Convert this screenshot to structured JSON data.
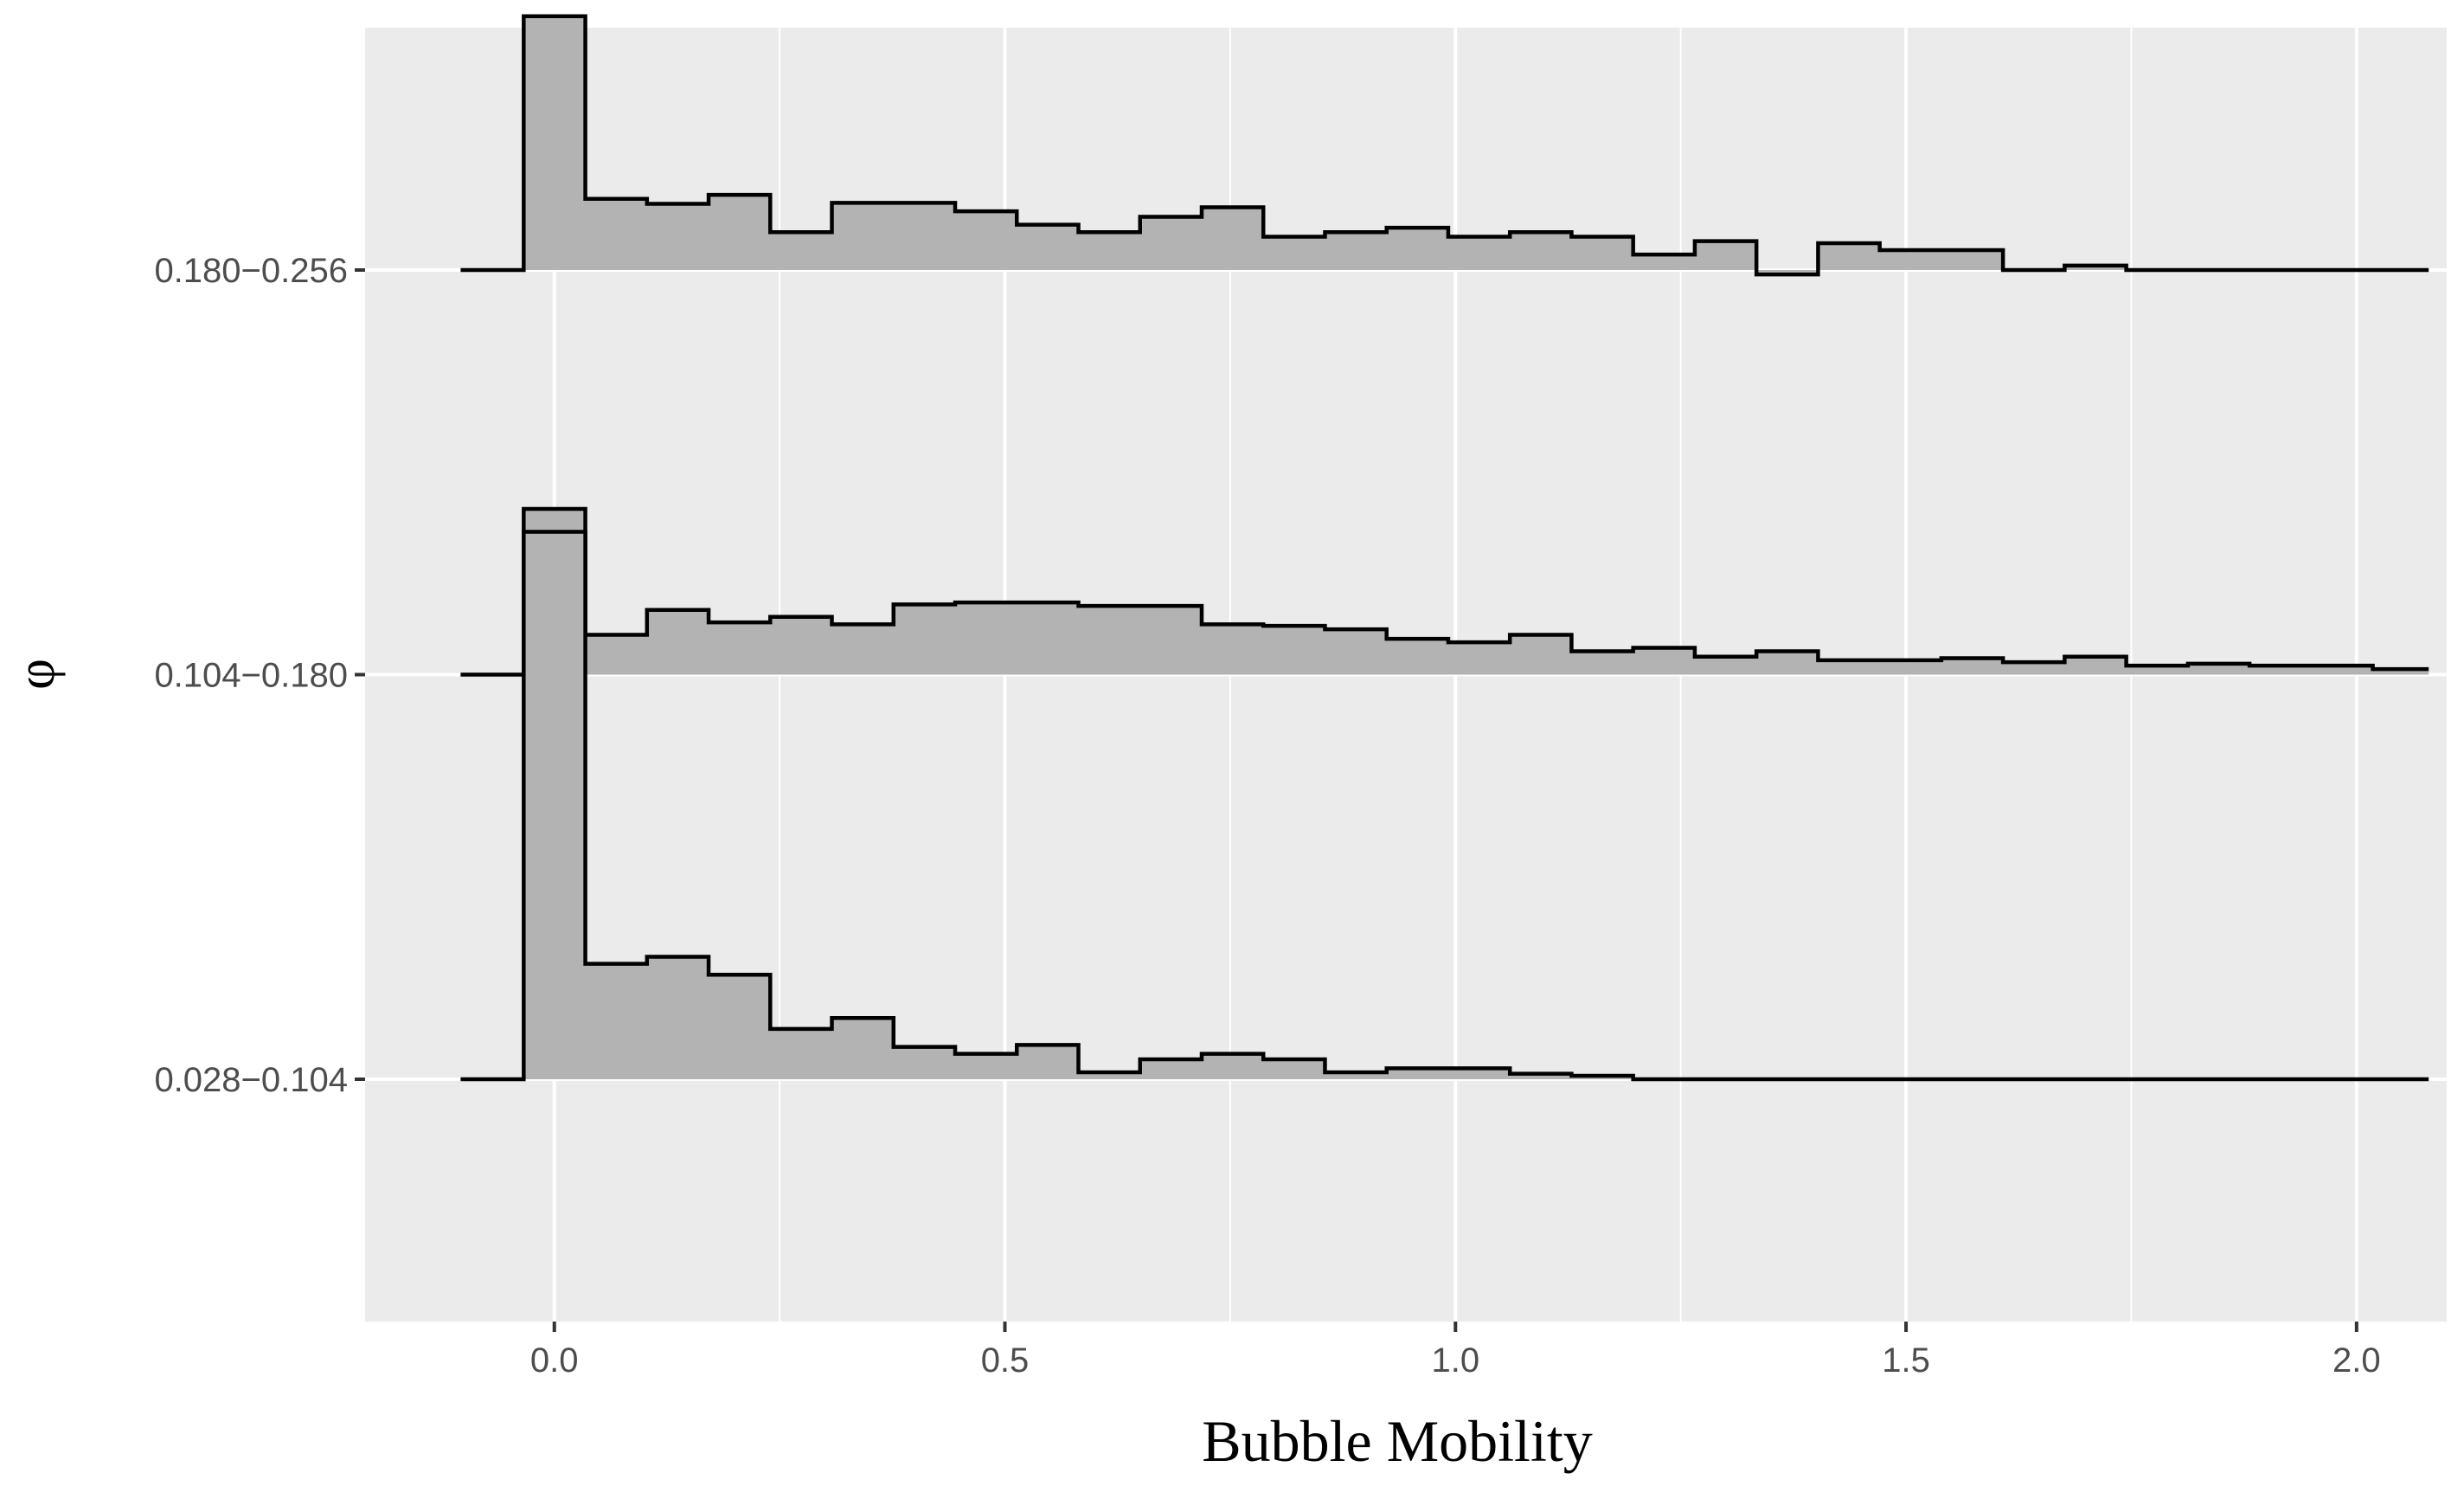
{
  "chart_data": {
    "type": "ridgeline-histogram",
    "title": "",
    "xlabel": "Bubble Mobility",
    "ylabel": "φ",
    "xlim": [
      -0.21,
      2.1
    ],
    "x_ticks": [
      {
        "value": 0.0,
        "label": "0.0"
      },
      {
        "value": 0.5,
        "label": "0.5"
      },
      {
        "value": 1.0,
        "label": "1.0"
      },
      {
        "value": 1.5,
        "label": "1.5"
      },
      {
        "value": 2.0,
        "label": "2.0"
      }
    ],
    "x_minor_ticks": [
      0.25,
      0.75,
      1.25,
      1.75
    ],
    "bin_start": -0.034,
    "bin_width": 0.0684,
    "line_start": -0.104,
    "line_end": 2.08,
    "ridge_scale": 1.23,
    "series": [
      {
        "name": "0.180−0.256",
        "label": "0.180−0.256",
        "baseline": 3,
        "heights": [
          0.51,
          0.143,
          0.133,
          0.151,
          0.076,
          0.135,
          0.135,
          0.118,
          0.091,
          0.076,
          0.107,
          0.126,
          0.067,
          0.076,
          0.085,
          0.067,
          0.076,
          0.067,
          0.031,
          0.058,
          -0.009,
          0.054,
          0.04,
          0.04,
          0.0,
          0.009,
          0.0,
          0.0,
          0.0,
          0.0,
          0.0
        ]
      },
      {
        "name": "0.104−0.180",
        "label": "0.104−0.180",
        "baseline": 2,
        "heights": [
          0.333,
          0.08,
          0.13,
          0.105,
          0.116,
          0.101,
          0.141,
          0.145,
          0.145,
          0.138,
          0.138,
          0.101,
          0.098,
          0.091,
          0.072,
          0.065,
          0.08,
          0.047,
          0.054,
          0.036,
          0.047,
          0.029,
          0.029,
          0.033,
          0.025,
          0.036,
          0.018,
          0.022,
          0.018,
          0.018,
          0.011
        ]
      },
      {
        "name": "0.028−0.104",
        "label": "0.028−0.104",
        "baseline": 1,
        "heights": [
          1.1,
          0.232,
          0.246,
          0.21,
          0.101,
          0.123,
          0.065,
          0.051,
          0.069,
          0.014,
          0.04,
          0.051,
          0.04,
          0.014,
          0.022,
          0.022,
          0.011,
          0.007,
          0.0,
          0.0,
          0.0,
          0.0,
          0.0,
          0.0,
          0.0,
          0.0,
          0.0,
          0.0,
          0.0,
          0.0,
          0.0
        ]
      }
    ],
    "grid": true,
    "legend": "none"
  }
}
